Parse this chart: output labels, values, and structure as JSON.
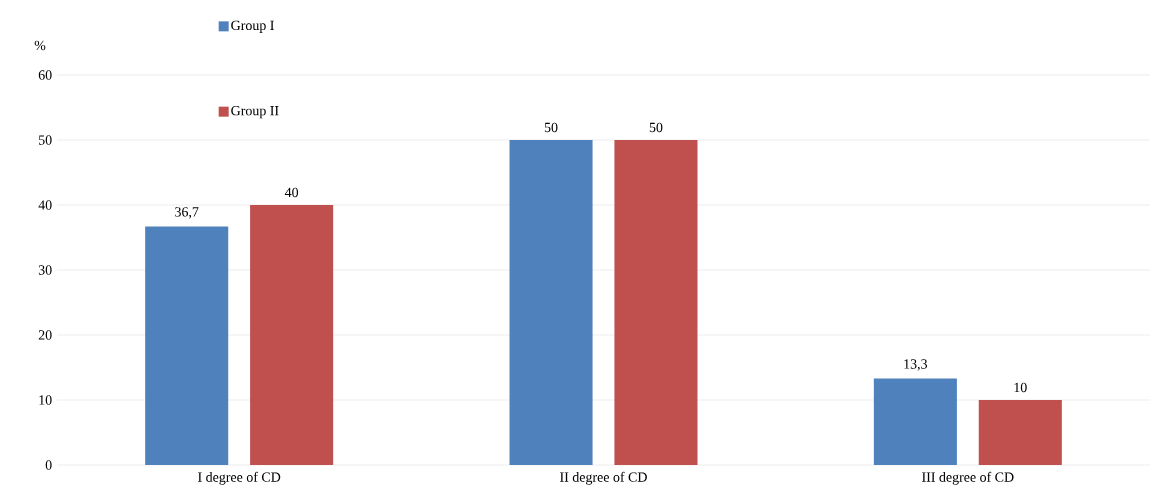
{
  "chart_data": {
    "type": "bar",
    "ylabel": "%",
    "categories": [
      "I degree of CD",
      "II degree of CD",
      "III degree of CD"
    ],
    "series": [
      {
        "name": "Group I",
        "color": "#4f81bd",
        "values": [
          36.7,
          50,
          13.3
        ],
        "value_labels": [
          "36,7",
          "50",
          "13,3"
        ]
      },
      {
        "name": "Group II",
        "color": "#c0504d",
        "values": [
          40,
          50,
          10
        ],
        "value_labels": [
          "40",
          "50",
          "10"
        ]
      }
    ],
    "ylim": [
      0,
      60
    ],
    "yticks": [
      0,
      10,
      20,
      30,
      40,
      50,
      60
    ],
    "grid": "y",
    "legend": "top left"
  }
}
